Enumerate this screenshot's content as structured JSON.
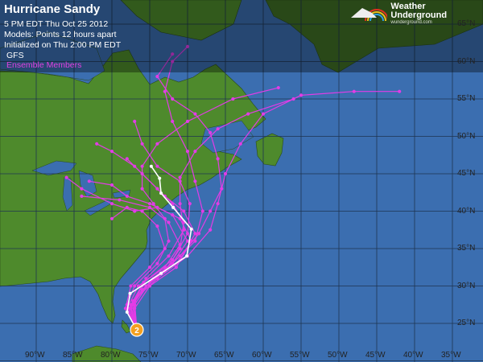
{
  "header": {
    "title": "Hurricane Sandy",
    "time": "5 PM EDT Thu Oct 25 2012",
    "models": "Models:   Points 12 hours apart",
    "initialized": "Initialized on Thu 2:00 PM EDT",
    "model_name": "GFS",
    "ensemble_label": "Ensemble Members"
  },
  "logo": {
    "name": "Weather Underground",
    "url_text": "wunderground.com"
  },
  "colors": {
    "ocean": "#3b6eb0",
    "land": "#4e8a2c",
    "gfs": "#ffffff",
    "ensemble": "#e23ce6",
    "storm": "#f4a020"
  },
  "lon_labels": [
    "90°W",
    "85°W",
    "80°W",
    "75°W",
    "70°W",
    "65°W",
    "60°W",
    "55°W",
    "50°W",
    "45°W",
    "40°W",
    "35°W"
  ],
  "lat_labels": [
    "65°N",
    "60°N",
    "55°N",
    "50°N",
    "45°N",
    "40°N",
    "35°N",
    "30°N",
    "25°N"
  ],
  "storm": {
    "category": "2"
  },
  "gfs_track": [
    [
      76.7,
      24.1
    ],
    [
      78.0,
      26.5
    ],
    [
      77.6,
      29.0
    ],
    [
      73.5,
      31.7
    ],
    [
      70.1,
      34.0
    ],
    [
      69.5,
      37.6
    ],
    [
      71.9,
      40.5
    ],
    [
      73.5,
      42.4
    ],
    [
      73.7,
      44.4
    ],
    [
      74.8,
      46.0
    ]
  ],
  "ensemble_tracks": [
    [
      [
        76.7,
        24.1
      ],
      [
        77.5,
        27
      ],
      [
        76,
        30
      ],
      [
        72,
        33
      ],
      [
        70,
        36
      ],
      [
        72,
        39.5
      ],
      [
        75,
        41
      ],
      [
        78,
        42
      ],
      [
        80,
        43.5
      ],
      [
        83,
        44
      ]
    ],
    [
      [
        76.7,
        24.1
      ],
      [
        77,
        27.5
      ],
      [
        75,
        30.5
      ],
      [
        71,
        33.5
      ],
      [
        69,
        37
      ],
      [
        70.5,
        40
      ],
      [
        73,
        42
      ],
      [
        76,
        45
      ],
      [
        78,
        47
      ]
    ],
    [
      [
        76.7,
        24.1
      ],
      [
        78,
        27
      ],
      [
        76.5,
        30
      ],
      [
        73,
        32.5
      ],
      [
        71,
        35.5
      ],
      [
        72.5,
        38.5
      ],
      [
        75,
        40.5
      ],
      [
        79,
        41.5
      ],
      [
        84,
        42
      ]
    ],
    [
      [
        76.7,
        24.1
      ],
      [
        77.2,
        28
      ],
      [
        74,
        31
      ],
      [
        70,
        34
      ],
      [
        67,
        37.5
      ],
      [
        66,
        41
      ],
      [
        65,
        45
      ],
      [
        63,
        49
      ],
      [
        60,
        53
      ],
      [
        55,
        55.5
      ],
      [
        48,
        56
      ],
      [
        42,
        56
      ]
    ],
    [
      [
        76.7,
        24.1
      ],
      [
        77.6,
        27
      ],
      [
        75.5,
        30
      ],
      [
        72,
        33
      ],
      [
        69,
        36
      ],
      [
        68,
        40
      ],
      [
        69,
        44
      ],
      [
        70,
        48
      ],
      [
        72,
        52
      ],
      [
        73,
        56
      ],
      [
        72,
        60
      ],
      [
        70,
        62
      ]
    ],
    [
      [
        76.7,
        24.1
      ],
      [
        78,
        27.5
      ],
      [
        77,
        30
      ],
      [
        74,
        33
      ],
      [
        72.5,
        36
      ],
      [
        73,
        39
      ],
      [
        74.5,
        41
      ],
      [
        76,
        43
      ],
      [
        76,
        46
      ],
      [
        74,
        49
      ],
      [
        70,
        52
      ],
      [
        64,
        55
      ],
      [
        58,
        56.5
      ]
    ],
    [
      [
        76.7,
        24.1
      ],
      [
        77,
        27
      ],
      [
        75,
        30
      ],
      [
        71.5,
        32.5
      ],
      [
        69.5,
        36
      ],
      [
        71,
        39
      ],
      [
        74,
        40.5
      ],
      [
        77,
        40
      ],
      [
        80,
        41
      ],
      [
        84,
        43
      ],
      [
        86,
        44.5
      ]
    ],
    [
      [
        76.7,
        24.1
      ],
      [
        77.8,
        27
      ],
      [
        76,
        29.5
      ],
      [
        73,
        32
      ],
      [
        71,
        35
      ],
      [
        70.5,
        38.5
      ],
      [
        72,
        41
      ],
      [
        74,
        43
      ],
      [
        77,
        46
      ],
      [
        80,
        48
      ],
      [
        82,
        49
      ]
    ],
    [
      [
        76.7,
        24.1
      ],
      [
        77,
        28
      ],
      [
        74.5,
        31
      ],
      [
        71,
        34
      ],
      [
        68.5,
        37
      ],
      [
        67,
        40
      ],
      [
        65.5,
        43
      ],
      [
        66,
        47
      ],
      [
        67,
        50.5
      ],
      [
        69,
        53
      ],
      [
        72,
        55
      ],
      [
        74,
        58
      ],
      [
        72,
        61
      ]
    ],
    [
      [
        76.7,
        24.1
      ],
      [
        77.5,
        27.5
      ],
      [
        75.5,
        31
      ],
      [
        72.5,
        34
      ],
      [
        70.5,
        37.5
      ],
      [
        71,
        41
      ],
      [
        71,
        44.5
      ],
      [
        69,
        48
      ],
      [
        66,
        51
      ],
      [
        62,
        53
      ],
      [
        56,
        55
      ]
    ],
    [
      [
        76.7,
        24.1
      ],
      [
        78.2,
        27
      ],
      [
        77.5,
        30
      ],
      [
        75,
        32.5
      ],
      [
        73,
        35
      ],
      [
        74,
        38
      ],
      [
        76,
        40
      ],
      [
        78,
        40.5
      ],
      [
        80,
        39
      ]
    ],
    [
      [
        76.7,
        24.1
      ],
      [
        77.3,
        27.5
      ],
      [
        75.8,
        30.5
      ],
      [
        72,
        33.5
      ],
      [
        70,
        37
      ],
      [
        69.7,
        41
      ],
      [
        71,
        44
      ],
      [
        74,
        46
      ],
      [
        76,
        49
      ],
      [
        77,
        52
      ]
    ]
  ]
}
